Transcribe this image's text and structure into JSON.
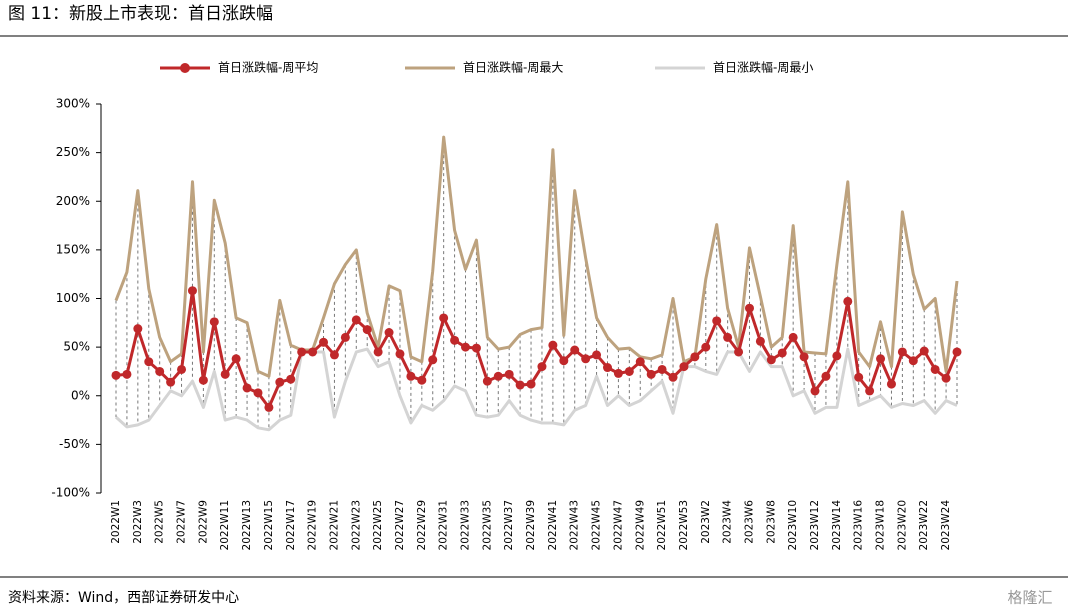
{
  "chart_data": {
    "type": "line",
    "title": "图 11：新股上市表现：首日涨跌幅",
    "source": "资料来源：Wind，西部证券研发中心",
    "watermark": "格隆汇",
    "categories": [
      "2022W1",
      null,
      "2022W3",
      null,
      "2022W5",
      null,
      "2022W7",
      null,
      "2022W9",
      null,
      "2022W11",
      null,
      "2022W13",
      null,
      "2022W15",
      null,
      "2022W17",
      null,
      "2022W19",
      null,
      "2022W21",
      null,
      "2022W23",
      null,
      "2022W25",
      null,
      "2022W27",
      null,
      "2022W29",
      null,
      "2022W31",
      null,
      "2022W33",
      null,
      "2022W35",
      null,
      "2022W37",
      null,
      "2022W39",
      null,
      "2022W41",
      null,
      "2022W43",
      null,
      "2022W45",
      null,
      "2022W47",
      null,
      "2022W49",
      null,
      "2022W51",
      null,
      "2022W53",
      null,
      "2023W2",
      null,
      "2023W4",
      null,
      "2023W6",
      null,
      "2023W8",
      null,
      "2023W10",
      null,
      "2023W12",
      null,
      "2023W14",
      null,
      "2023W16",
      null,
      "2023W18",
      null,
      "2023W20",
      null,
      "2023W22",
      null,
      "2023W24",
      null
    ],
    "series": [
      {
        "name": "首日涨跌幅-周平均",
        "color": "#c0282a",
        "values": [
          21,
          22,
          69,
          35,
          25,
          14,
          27,
          108,
          16,
          76,
          22,
          38,
          8,
          3,
          -12,
          14,
          17,
          45,
          45,
          55,
          42,
          60,
          78,
          68,
          45,
          65,
          43,
          20,
          16,
          37,
          80,
          57,
          50,
          49,
          15,
          20,
          22,
          11,
          12,
          30,
          52,
          36,
          47,
          38,
          42,
          29,
          23,
          25,
          35,
          22,
          27,
          19,
          30,
          40,
          50,
          77,
          60,
          45,
          90,
          56,
          37,
          44,
          60,
          40,
          5,
          20,
          41,
          97,
          19,
          5,
          38,
          12,
          45,
          36,
          46,
          27,
          18,
          45
        ]
      },
      {
        "name": "首日涨跌幅-周最大",
        "color": "#bda27e",
        "values": [
          98,
          127,
          211,
          110,
          60,
          35,
          43,
          220,
          45,
          201,
          157,
          80,
          75,
          25,
          20,
          98,
          52,
          47,
          47,
          80,
          115,
          135,
          150,
          85,
          50,
          113,
          108,
          40,
          35,
          128,
          266,
          170,
          130,
          160,
          60,
          48,
          50,
          63,
          68,
          70,
          253,
          62,
          211,
          142,
          80,
          60,
          48,
          49,
          40,
          38,
          42,
          100,
          35,
          40,
          120,
          176,
          90,
          50,
          152,
          102,
          50,
          60,
          175,
          45,
          44,
          43,
          135,
          220,
          45,
          30,
          76,
          30,
          189,
          125,
          89,
          100,
          25,
          118
        ]
      },
      {
        "name": "首日涨跌幅-周最小",
        "color": "#d4d4d4",
        "values": [
          -22,
          -32,
          -30,
          -25,
          -10,
          5,
          0,
          15,
          -12,
          25,
          -25,
          -22,
          -25,
          -33,
          -35,
          -25,
          -20,
          45,
          45,
          45,
          -22,
          15,
          45,
          48,
          30,
          35,
          0,
          -28,
          -10,
          -15,
          -5,
          10,
          5,
          -20,
          -22,
          -20,
          -5,
          -20,
          -25,
          -28,
          -28,
          -30,
          -15,
          -10,
          20,
          -10,
          0,
          -10,
          -5,
          5,
          15,
          -18,
          30,
          30,
          25,
          22,
          45,
          45,
          25,
          45,
          30,
          30,
          0,
          5,
          -18,
          -12,
          -12,
          48,
          -10,
          -5,
          0,
          -12,
          -8,
          -10,
          -5,
          -18,
          -5,
          -10
        ]
      }
    ],
    "ylim": [
      -100,
      300
    ],
    "yticks": [
      {
        "value": -100,
        "label": "-100%"
      },
      {
        "value": -50,
        "label": "-50%"
      },
      {
        "value": 0,
        "label": "0%"
      },
      {
        "value": 50,
        "label": "50%"
      },
      {
        "value": 100,
        "label": "100%"
      },
      {
        "value": 150,
        "label": "150%"
      },
      {
        "value": 200,
        "label": "200%"
      },
      {
        "value": 250,
        "label": "250%"
      },
      {
        "value": 300,
        "label": "300%"
      }
    ]
  }
}
